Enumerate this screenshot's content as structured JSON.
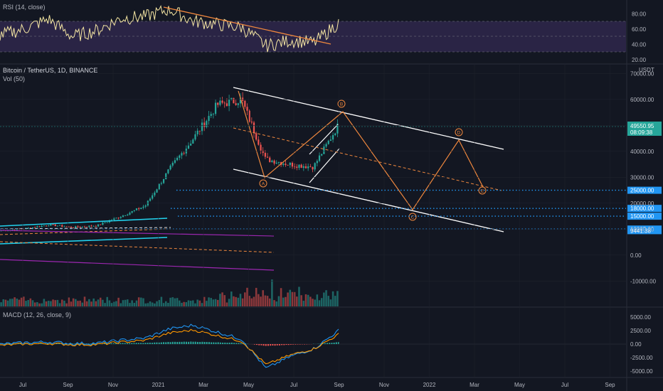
{
  "rsi": {
    "title": "RSI (14, close)",
    "ticks": [
      "80.00",
      "60.00",
      "40.00",
      "20.00"
    ]
  },
  "main": {
    "title": "Bitcoin / TetherUS, 1D, BINANCE",
    "vol_label": "Vol (50)",
    "currency": "USDT",
    "price_ticks": [
      "70000.00",
      "60000.00",
      "50000.00",
      "40000.00",
      "30000.00",
      "20000.00",
      "10000.00",
      "0.00",
      "-10000.00"
    ],
    "last_price": "49550.95",
    "countdown": "08:09:38",
    "wave_labels": [
      "A",
      "B",
      "C",
      "D",
      "E"
    ],
    "levels": [
      {
        "label": "25000.00",
        "value": 25000
      },
      {
        "label": "18000.00",
        "value": 18000
      },
      {
        "label": "15000.00",
        "value": 15000
      },
      {
        "label": "10037.99",
        "value": 10037.99
      },
      {
        "label": "9441.38",
        "value": 9441.38
      }
    ]
  },
  "macd": {
    "title": "MACD (12, 26, close, 9)",
    "ticks": [
      "5000.00",
      "2500.00",
      "0.00",
      "-2500.00",
      "-5000.00"
    ]
  },
  "xaxis": {
    "ticks": [
      "Jul",
      "Sep",
      "Nov",
      "2021",
      "Mar",
      "May",
      "Jul",
      "Sep",
      "Nov",
      "2022",
      "Mar",
      "May",
      "Jul",
      "Sep"
    ]
  },
  "colors": {
    "background": "#131722",
    "candle_up": "#26a69a",
    "candle_down": "#ef5350",
    "rsi_line": "#f5e6a3",
    "rsi_band": "#7e57c2",
    "wave": "#f0883e",
    "channel": "#ffffff",
    "level": "#2196f3",
    "trend_cyan": "#22d3ee",
    "trend_purple": "#9c27b0",
    "macd_line": "#2196f3",
    "signal_line": "#ff9800"
  },
  "chart_data": [
    {
      "type": "line",
      "title": "RSI (14, close)",
      "ylim": [
        15,
        92
      ],
      "x": [
        "2020-06",
        "2020-07",
        "2020-08",
        "2020-09",
        "2020-10",
        "2020-11",
        "2020-12",
        "2021-01",
        "2021-02",
        "2021-03",
        "2021-04",
        "2021-05",
        "2021-06",
        "2021-07",
        "2021-08"
      ],
      "series": [
        {
          "values": [
            52,
            60,
            73,
            50,
            58,
            74,
            76,
            86,
            70,
            66,
            62,
            38,
            45,
            42,
            68
          ]
        }
      ]
    },
    {
      "type": "line",
      "title": "Bitcoin / TetherUS, 1D, BINANCE",
      "ylabel": "USDT",
      "ylim": [
        -14000,
        76000
      ],
      "x": [
        "2020-06",
        "2020-07",
        "2020-08",
        "2020-09",
        "2020-10",
        "2020-11",
        "2020-12",
        "2021-01",
        "2021-02",
        "2021-03",
        "2021-04",
        "2021-05",
        "2021-06",
        "2021-07",
        "2021-08"
      ],
      "series": [
        {
          "values": [
            9400,
            10200,
            11700,
            10700,
            11400,
            15000,
            19000,
            33000,
            45000,
            58000,
            60000,
            37000,
            35000,
            34000,
            49550.95
          ]
        }
      ],
      "levels": [
        25000,
        18000,
        15000,
        10037.99,
        9441.38
      ]
    },
    {
      "type": "bar",
      "title": "MACD (12, 26, close, 9)",
      "ylim": [
        -6000,
        6000
      ],
      "x": [
        "2020-06",
        "2020-07",
        "2020-08",
        "2020-09",
        "2020-10",
        "2020-11",
        "2020-12",
        "2021-01",
        "2021-02",
        "2021-03",
        "2021-04",
        "2021-05",
        "2021-06",
        "2021-07",
        "2021-08"
      ],
      "series": [
        {
          "values": [
            -50,
            250,
            400,
            100,
            150,
            700,
            1100,
            2800,
            3500,
            2200,
            900,
            -4500,
            -2300,
            -800,
            2500
          ]
        }
      ]
    }
  ]
}
